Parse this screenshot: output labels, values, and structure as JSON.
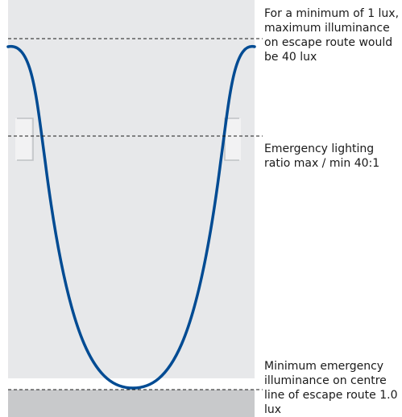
{
  "annotations": {
    "maximum": "For a minimum of 1 lux, maximum illuminance on escape route would be 40 lux",
    "ratio": "Emergency lighting ratio max / min 40:1",
    "minimum": "Minimum emergency illuminance on centre line of escape route 1.0 lux"
  },
  "colors": {
    "wall": "#e7e8ea",
    "floor": "#c8c9cb",
    "curve": "#004b93",
    "luminaire": "#f2f2f3",
    "dashed_line": "#1a1a1a"
  }
}
